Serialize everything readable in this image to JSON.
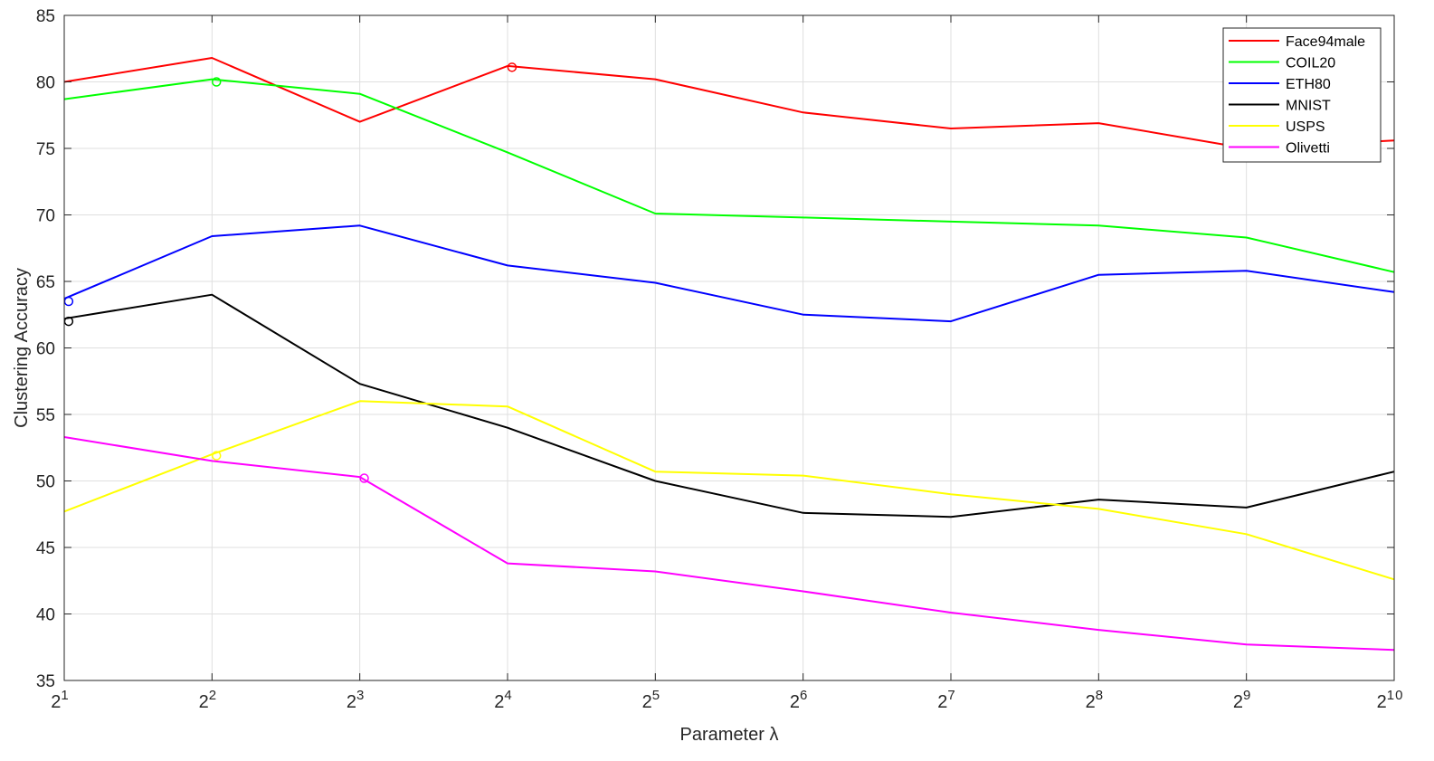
{
  "chart_data": {
    "type": "line",
    "title": "",
    "xlabel": "Parameter λ",
    "ylabel": "Clustering Accuracy",
    "x": [
      1,
      2,
      3,
      4,
      5,
      6,
      7,
      8,
      9,
      10
    ],
    "x_tick_labels": [
      {
        "base": "2",
        "exp": "1"
      },
      {
        "base": "2",
        "exp": "2"
      },
      {
        "base": "2",
        "exp": "3"
      },
      {
        "base": "2",
        "exp": "4"
      },
      {
        "base": "2",
        "exp": "5"
      },
      {
        "base": "2",
        "exp": "6"
      },
      {
        "base": "2",
        "exp": "7"
      },
      {
        "base": "2",
        "exp": "8"
      },
      {
        "base": "2",
        "exp": "9"
      },
      {
        "base": "2",
        "exp": "1",
        "exp2": "0"
      }
    ],
    "xlim": [
      1,
      10
    ],
    "ylim": [
      35,
      85
    ],
    "y_ticks": [
      35,
      40,
      45,
      50,
      55,
      60,
      65,
      70,
      75,
      80,
      85
    ],
    "grid": true,
    "legend_position": "top-right",
    "series": [
      {
        "name": "Face94male",
        "color": "#ff0000",
        "values": [
          80.0,
          81.8,
          77.0,
          81.2,
          80.2,
          77.7,
          76.5,
          76.9,
          75.0,
          75.6
        ],
        "marker": {
          "x": 4.03,
          "y": 81.1
        }
      },
      {
        "name": "COIL20",
        "color": "#00ff00",
        "values": [
          78.7,
          80.2,
          79.1,
          74.7,
          70.1,
          69.8,
          69.5,
          69.2,
          68.3,
          65.7
        ],
        "marker": {
          "x": 2.03,
          "y": 80.0
        }
      },
      {
        "name": "ETH80",
        "color": "#0000ff",
        "values": [
          63.7,
          68.4,
          69.2,
          66.2,
          64.9,
          62.5,
          62.0,
          65.5,
          65.8,
          64.2
        ],
        "marker": {
          "x": 1.03,
          "y": 63.5
        }
      },
      {
        "name": "MNIST",
        "color": "#000000",
        "values": [
          62.2,
          64.0,
          57.3,
          54.0,
          50.0,
          47.6,
          47.3,
          48.6,
          48.0,
          50.7
        ],
        "marker": {
          "x": 1.03,
          "y": 62.0
        }
      },
      {
        "name": "USPS",
        "color": "#ffff00",
        "values": [
          47.7,
          52.0,
          56.0,
          55.6,
          50.7,
          50.4,
          49.0,
          47.9,
          46.0,
          42.6
        ],
        "marker": {
          "x": 2.03,
          "y": 51.9
        }
      },
      {
        "name": "Olivetti",
        "color": "#ff00ff",
        "values": [
          53.3,
          51.5,
          50.3,
          43.8,
          43.2,
          41.7,
          40.1,
          38.8,
          37.7,
          37.3
        ],
        "marker": {
          "x": 3.03,
          "y": 50.2
        }
      }
    ]
  }
}
